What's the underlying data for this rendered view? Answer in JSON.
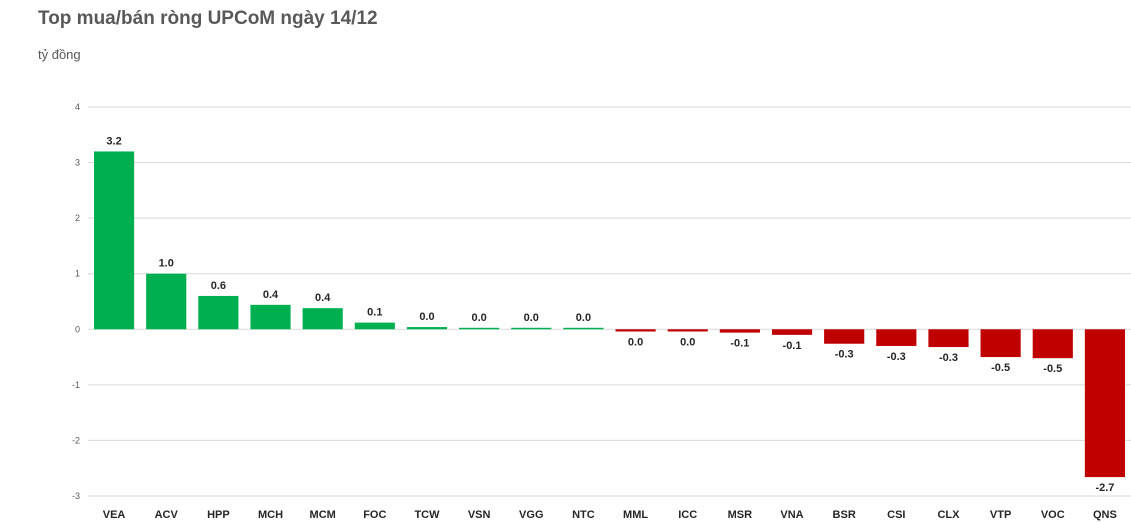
{
  "chart_data": {
    "type": "bar",
    "title": "Top mua/bán ròng UPCoM ngày 14/12",
    "ylabel": "tỷ đồng",
    "ylim": [
      -3,
      4
    ],
    "yticks": [
      -3,
      -2,
      -1,
      0,
      1,
      2,
      3,
      4
    ],
    "grid": true,
    "categories": [
      "VEA",
      "ACV",
      "HPP",
      "MCH",
      "MCM",
      "FOC",
      "TCW",
      "VSN",
      "VGG",
      "NTC",
      "MML",
      "ICC",
      "MSR",
      "VNA",
      "BSR",
      "CSI",
      "CLX",
      "VTP",
      "VOC",
      "QNS"
    ],
    "values": [
      3.2,
      1.0,
      0.6,
      0.44,
      0.38,
      0.12,
      0.04,
      0.02,
      0.02,
      0.02,
      -0.04,
      -0.04,
      -0.06,
      -0.1,
      -0.26,
      -0.3,
      -0.32,
      -0.5,
      -0.52,
      -2.66
    ],
    "labels": [
      "3.2",
      "1.0",
      "0.6",
      "0.4",
      "0.4",
      "0.1",
      "0.0",
      "0.0",
      "0.0",
      "0.0",
      "0.0",
      "0.0",
      "-0.1",
      "-0.1",
      "-0.3",
      "-0.3",
      "-0.3",
      "-0.5",
      "-0.5",
      "-2.7"
    ],
    "colors": {
      "positive": "#00b050",
      "negative": "#c00000"
    }
  }
}
